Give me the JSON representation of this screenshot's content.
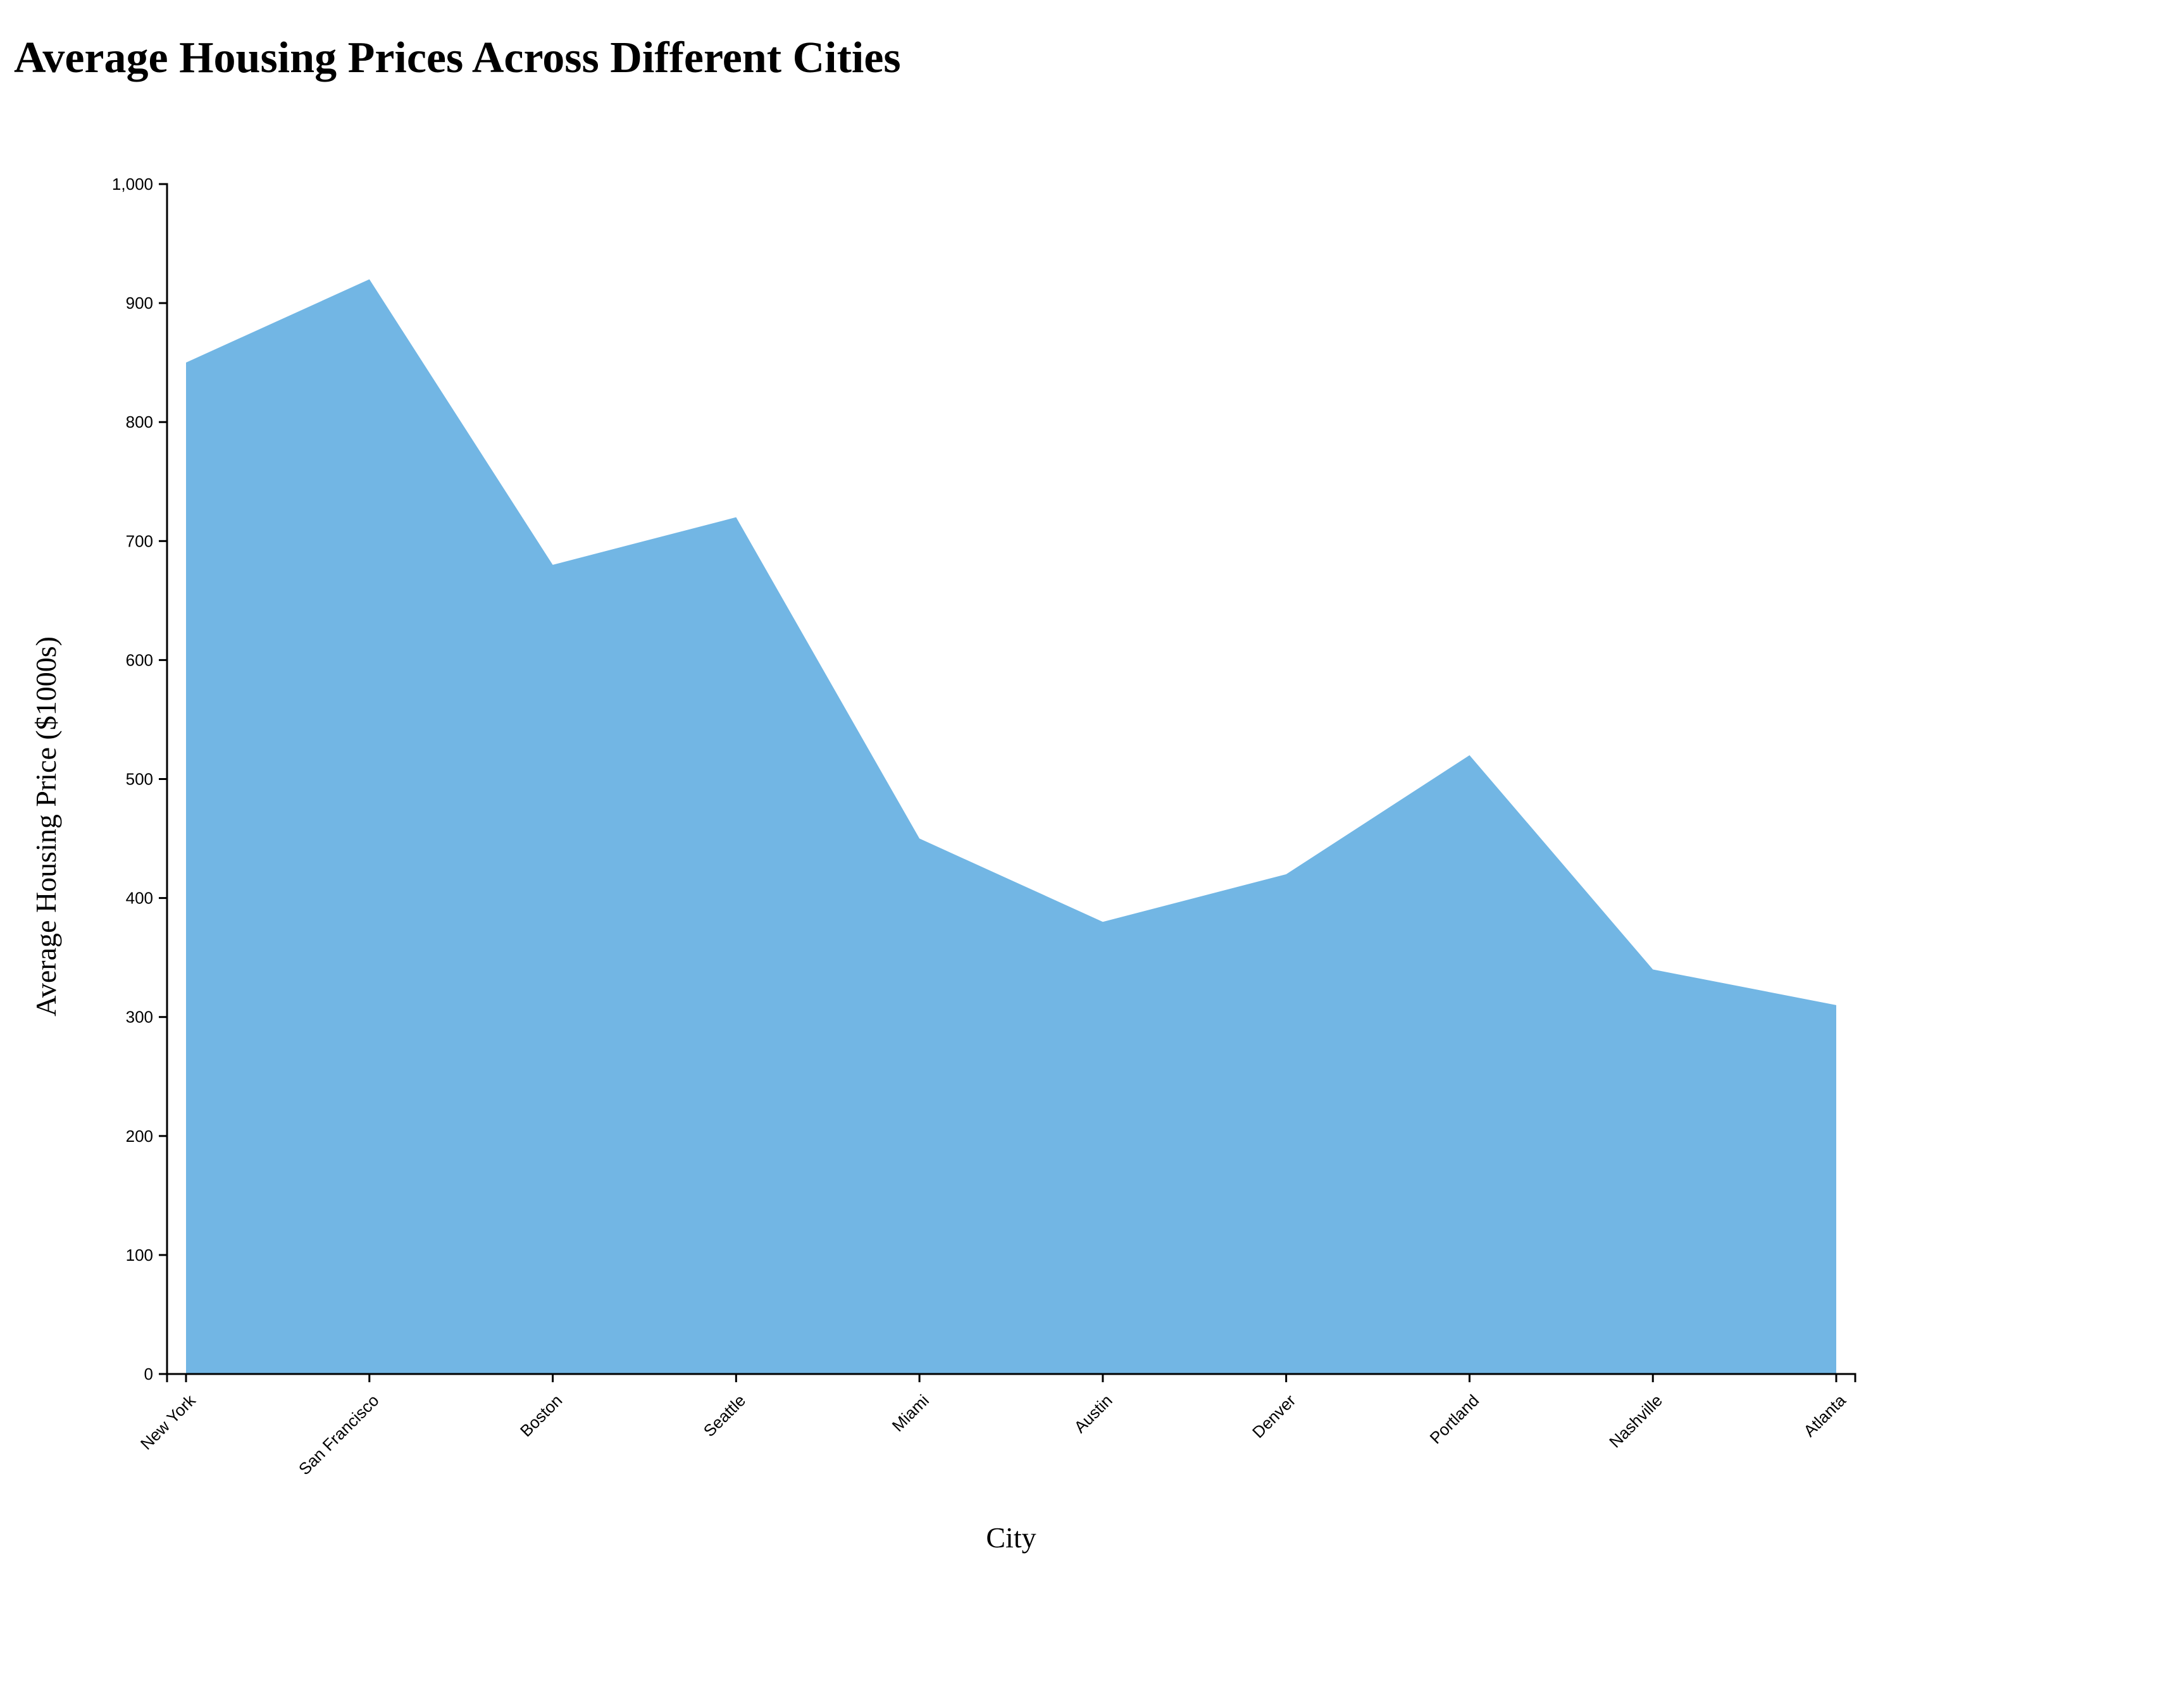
{
  "chart_data": {
    "type": "area",
    "title": "Average Housing Prices Across Different Cities",
    "xlabel": "City",
    "ylabel": "Average Housing Price ($1000s)",
    "categories": [
      "New York",
      "San Francisco",
      "Boston",
      "Seattle",
      "Miami",
      "Austin",
      "Denver",
      "Portland",
      "Nashville",
      "Atlanta"
    ],
    "values": [
      850,
      920,
      680,
      720,
      450,
      380,
      420,
      520,
      340,
      310
    ],
    "ylim": [
      0,
      1000
    ],
    "yticks": [
      0,
      100,
      200,
      300,
      400,
      500,
      600,
      700,
      800,
      900,
      1000
    ],
    "ytick_labels": [
      "0",
      "100",
      "200",
      "300",
      "400",
      "500",
      "600",
      "700",
      "800",
      "900",
      "1,000"
    ],
    "grid": false,
    "fill_color": "#72b6e4"
  }
}
